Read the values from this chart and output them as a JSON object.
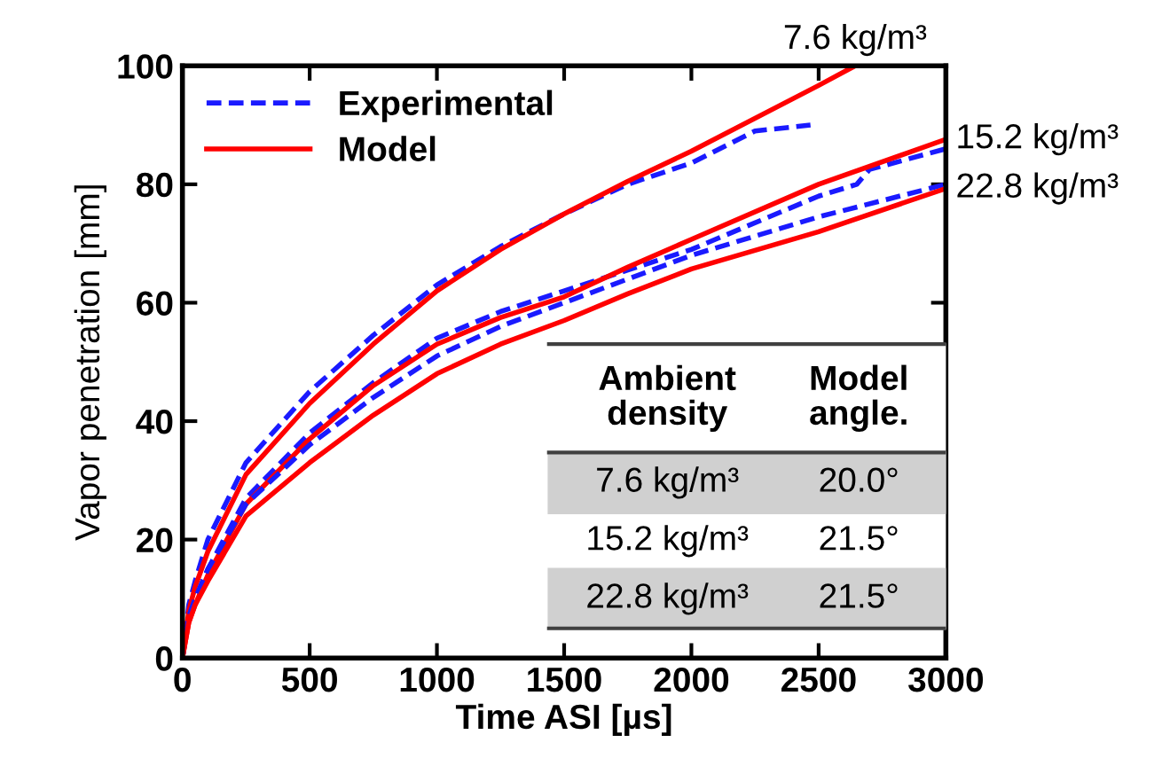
{
  "chart_data": {
    "type": "line",
    "xlabel": "Time ASI [µs]",
    "ylabel": "Vapor penetration [mm]",
    "xlim": [
      0,
      3000
    ],
    "ylim": [
      0,
      100
    ],
    "xticks": [
      0,
      500,
      1000,
      1500,
      2000,
      2500,
      3000
    ],
    "yticks": [
      0,
      20,
      40,
      60,
      80,
      100
    ],
    "grid": false,
    "legend": "top left",
    "series": [
      {
        "name": "Experimental",
        "color": "#1a1aff",
        "line_style": "dashed",
        "x": [
          0,
          25,
          50,
          100,
          250,
          500,
          750,
          1000,
          1250,
          1500,
          1750,
          2000,
          2250,
          2468
        ],
        "values": [
          0,
          9,
          13,
          20,
          33,
          45,
          54.5,
          63,
          69.5,
          75,
          80,
          83.6,
          89,
          90
        ]
      },
      {
        "name": "Model",
        "color": "#ff0000",
        "line_style": "solid",
        "x": [
          0,
          25,
          50,
          100,
          250,
          500,
          750,
          1000,
          1250,
          1500,
          1750,
          2000,
          2500,
          2643
        ],
        "values": [
          0,
          8,
          12,
          18,
          31,
          43,
          53,
          62,
          69,
          75,
          80.5,
          85.6,
          96.7,
          100
        ]
      },
      {
        "color": "#1a1aff",
        "line_style": "dashed",
        "x": [
          0,
          25,
          50,
          100,
          250,
          500,
          750,
          1000,
          1250,
          1500,
          1750,
          2000,
          2500,
          2650,
          2700,
          3000
        ],
        "values": [
          0,
          7,
          10,
          15,
          27,
          38,
          46.5,
          54,
          58.5,
          62,
          65.5,
          69,
          78,
          80,
          82.5,
          86
        ]
      },
      {
        "color": "#ff0000",
        "line_style": "solid",
        "x": [
          0,
          25,
          50,
          100,
          250,
          500,
          750,
          1000,
          1250,
          1500,
          1750,
          2000,
          2500,
          3000
        ],
        "values": [
          0,
          6,
          9,
          14,
          26,
          37,
          46,
          53,
          57.5,
          61,
          66,
          70.7,
          80,
          87.6
        ]
      },
      {
        "color": "#1a1aff",
        "line_style": "dashed",
        "x": [
          0,
          25,
          50,
          100,
          250,
          500,
          750,
          1000,
          1250,
          1500,
          1750,
          2000,
          2500,
          3000
        ],
        "values": [
          0,
          7,
          10,
          15,
          26,
          36,
          44,
          51,
          56,
          60,
          64,
          68,
          74.5,
          80
        ]
      },
      {
        "color": "#ff0000",
        "line_style": "solid",
        "x": [
          0,
          25,
          50,
          100,
          250,
          500,
          750,
          1000,
          1250,
          1500,
          1750,
          2000,
          2500,
          3000
        ],
        "values": [
          0,
          6,
          9,
          13,
          24,
          33,
          41,
          48,
          53,
          57,
          61.5,
          65.7,
          72,
          79.3
        ]
      }
    ],
    "annotations": [
      "7.6 kg/m³",
      "15.2 kg/m³",
      "22.8 kg/m³",
      "Ambient\ndensity",
      "Model\nangle.",
      "7.6 kg/m³",
      "20.0°",
      "15.2 kg/m³",
      "21.5°",
      "22.8 kg/m³",
      "21.5°"
    ]
  }
}
